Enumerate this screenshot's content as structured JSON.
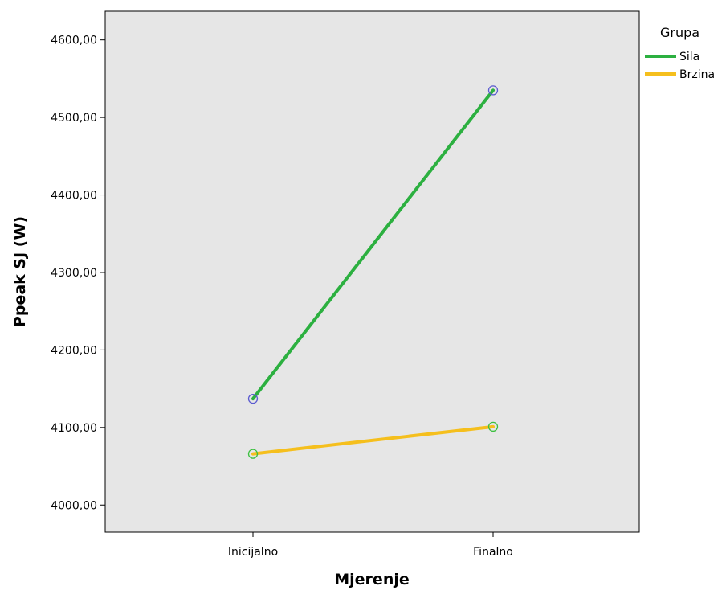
{
  "chart_data": {
    "type": "line",
    "title": "",
    "xlabel": "Mjerenje",
    "ylabel": "Ppeak SJ (W)",
    "categories": [
      "Inicijalno",
      "Finalno"
    ],
    "ylim": [
      3965,
      4637
    ],
    "yticks": [
      4000,
      4100,
      4200,
      4300,
      4400,
      4500,
      4600
    ],
    "ytick_labels": [
      "4000,00",
      "4100,00",
      "4200,00",
      "4300,00",
      "4400,00",
      "4500,00",
      "4600,00"
    ],
    "grid": false,
    "plot_background": "#e6e6e6",
    "marker_color": "#5b5bd0",
    "legend": {
      "title": "Grupa",
      "position": "right"
    },
    "series": [
      {
        "name": "Sila",
        "values": [
          4137,
          4535
        ],
        "color": "#2cb040",
        "marker_color": "#5b5bd0"
      },
      {
        "name": "Brzina",
        "values": [
          4066,
          4101
        ],
        "color": "#f5bf1d",
        "marker_color": "#3cc040"
      }
    ]
  }
}
